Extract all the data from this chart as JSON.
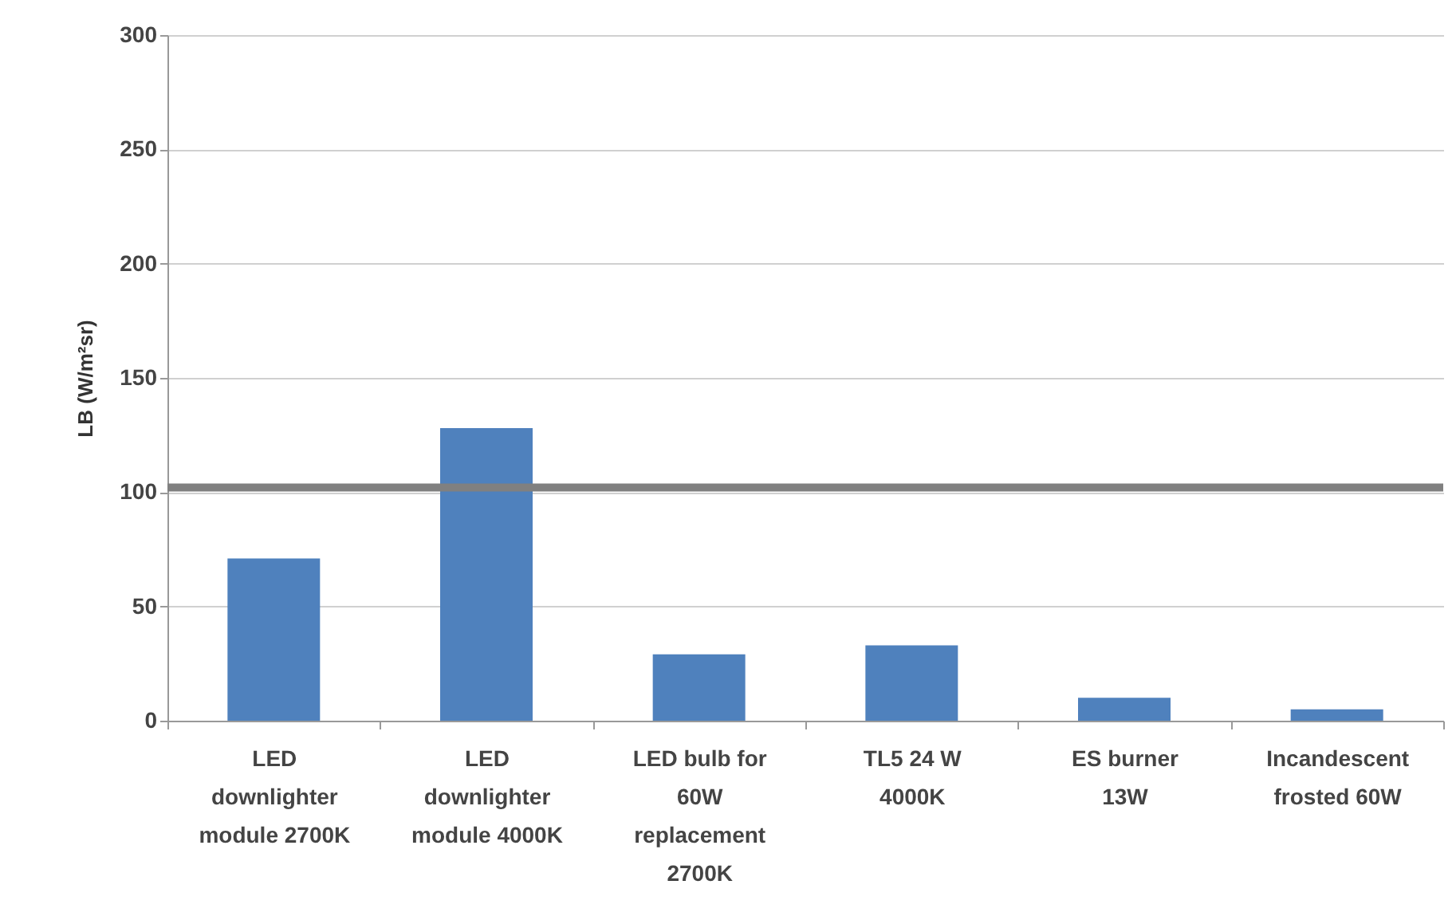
{
  "chart_data": {
    "type": "bar",
    "ylabel": "LB (W/m²sr)",
    "categories": [
      "LED downlighter module 2700K",
      "LED downlighter module 4000K",
      "LED bulb for 60W replacement 2700K",
      "TL5 24 W 4000K",
      "ES burner 13W",
      "Incandescent frosted 60W"
    ],
    "values": [
      71,
      128,
      29,
      33,
      10,
      5
    ],
    "color": "#4f81bd",
    "ylim": [
      0,
      300
    ],
    "yticks": [
      0,
      50,
      100,
      150,
      200,
      250,
      300
    ],
    "grid": "y",
    "ref_lines": [
      {
        "axis": "y",
        "value": 102,
        "color": "#808080"
      }
    ]
  }
}
